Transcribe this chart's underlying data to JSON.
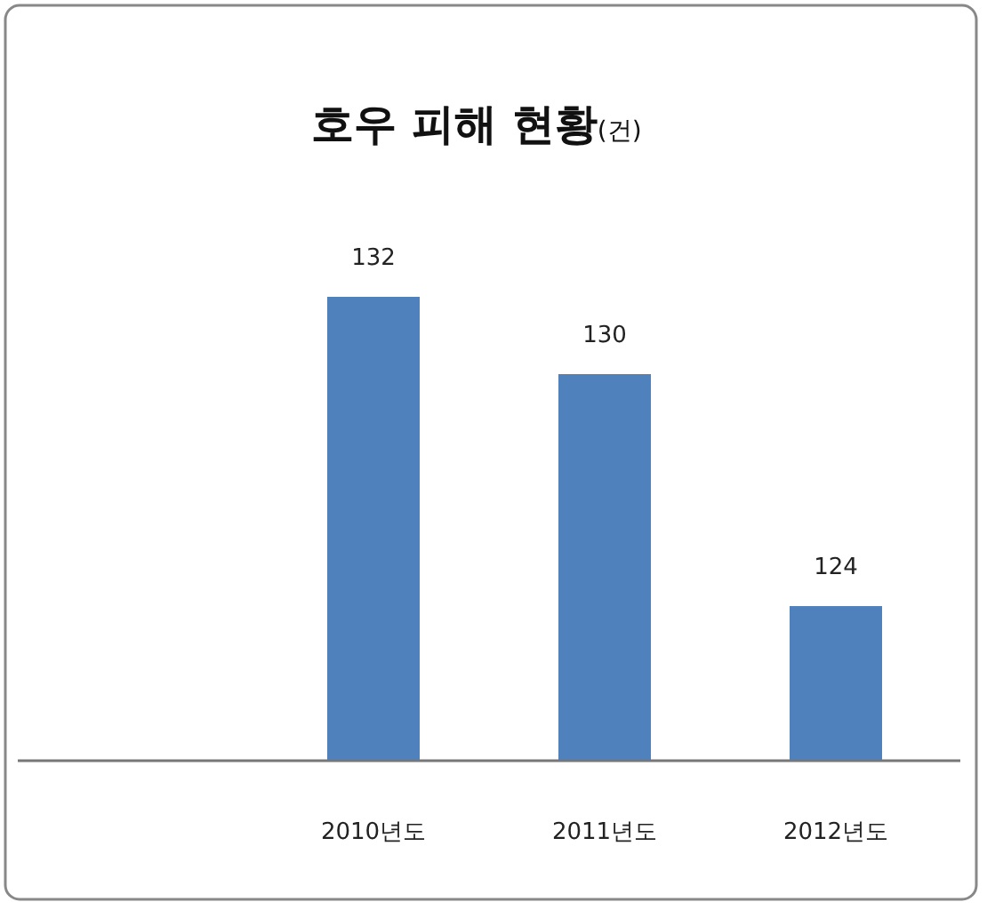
{
  "chart_data": {
    "type": "bar",
    "title": "호우 피해 현황",
    "subtitle": "(건)",
    "categories": [
      null,
      "2010년도",
      "2011년도",
      "2012년도"
    ],
    "values": [
      null,
      132,
      130,
      124
    ],
    "color": "#4f81bd",
    "ylim": [
      120,
      132
    ],
    "data_labels": true
  }
}
